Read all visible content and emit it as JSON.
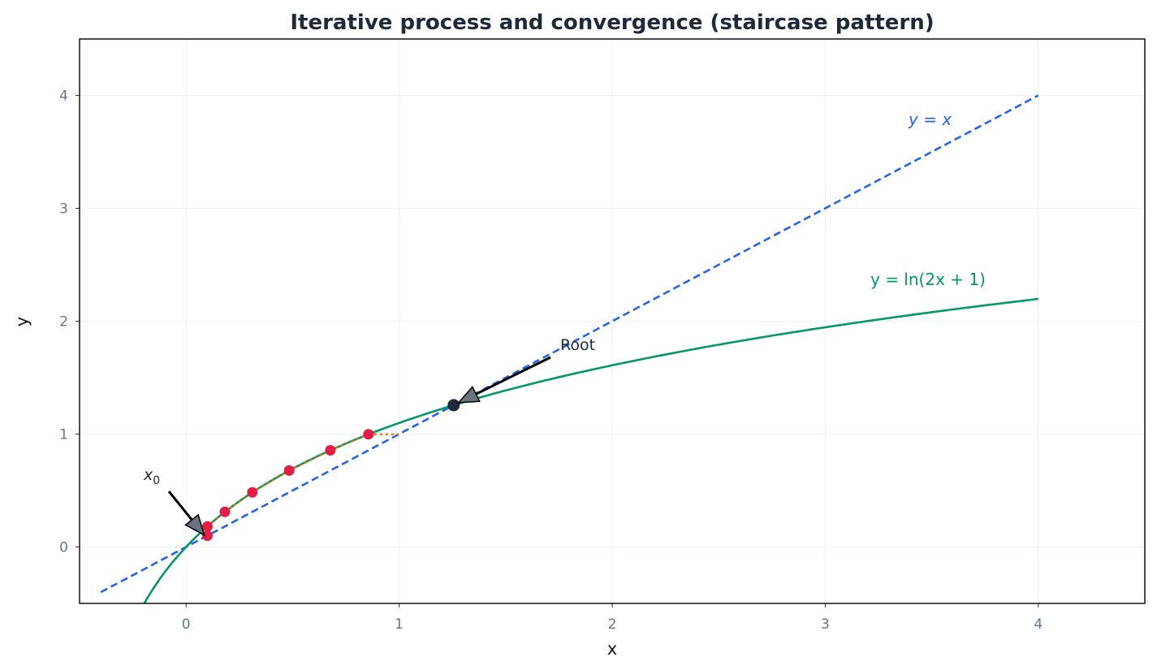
{
  "chart_data": {
    "type": "line",
    "title": "Iterative process and convergence (staircase pattern)",
    "xlabel": "x",
    "ylabel": "y",
    "xlim": [
      -0.5,
      4.5
    ],
    "ylim": [
      -0.5,
      4.5
    ],
    "xticks": [
      0,
      1,
      2,
      3,
      4
    ],
    "yticks": [
      0,
      1,
      2,
      3,
      4
    ],
    "grid": true,
    "series": [
      {
        "name": "y = x",
        "kind": "dashed-line",
        "color": "#2563eb",
        "function": "x",
        "x_range": [
          -0.4,
          4
        ]
      },
      {
        "name": "y = ln(2x + 1)",
        "kind": "line",
        "color": "#059669",
        "function": "ln(2x+1)",
        "x_range": [
          -0.45,
          4
        ]
      }
    ],
    "iteration": {
      "x0": 0.1,
      "points": [
        [
          0.1,
          0.1
        ],
        [
          0.1,
          0.182
        ],
        [
          0.182,
          0.311
        ],
        [
          0.311,
          0.484
        ],
        [
          0.484,
          0.677
        ],
        [
          0.677,
          0.856
        ],
        [
          0.856,
          0.998
        ]
      ],
      "point_color": "#e11d48",
      "staircase_color": "#d97706"
    },
    "root": {
      "x": 1.256,
      "y": 1.256,
      "color": "#1e293b"
    },
    "annotations": [
      {
        "text": "Root",
        "at": [
          1.76,
          1.78
        ],
        "arrow_to": [
          1.256,
          1.256
        ]
      },
      {
        "text": "x0",
        "at": [
          -0.2,
          0.6
        ],
        "arrow_to": [
          0.1,
          0.12
        ]
      }
    ],
    "labels": {
      "line": "y = x",
      "curve": "y = ln(2x + 1)"
    }
  }
}
